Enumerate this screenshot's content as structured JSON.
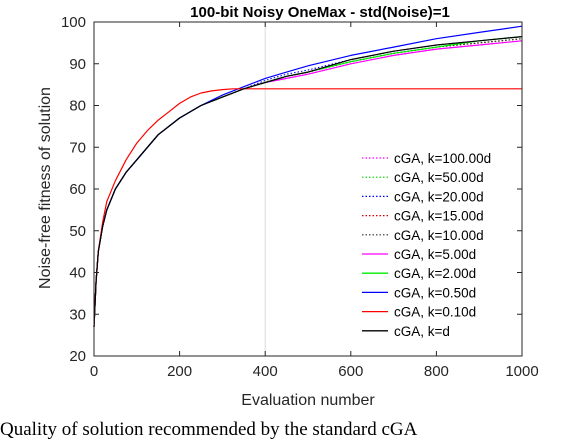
{
  "chart_data": {
    "type": "line",
    "title": "100-bit Noisy OneMax - std(Noise)=1",
    "xlabel": "Evaluation number",
    "ylabel": "Noise-free fitness of solution",
    "xlim": [
      0,
      1000
    ],
    "ylim": [
      20,
      100
    ],
    "xticks": [
      0,
      200,
      400,
      600,
      800,
      1000
    ],
    "yticks": [
      20,
      30,
      40,
      50,
      60,
      70,
      80,
      90,
      100
    ],
    "grid": "vertical at x=400",
    "legend_position": "right-center",
    "series": [
      {
        "name": "cGA, k=100.00d",
        "color": "#ff00ff",
        "style": "dotted",
        "x": [
          0,
          5,
          10,
          20,
          30,
          50,
          75,
          100,
          150,
          200,
          250,
          300,
          350,
          400,
          450,
          500,
          600,
          700,
          800,
          900,
          1000
        ],
        "y": [
          27,
          38,
          45,
          51,
          55,
          60,
          64,
          67,
          73,
          77,
          80,
          82,
          84,
          85.5,
          86.5,
          87.5,
          90,
          92,
          93.5,
          94.5,
          95.5
        ]
      },
      {
        "name": "cGA, k=50.00d",
        "color": "#00cc00",
        "style": "dotted",
        "x": [
          0,
          5,
          10,
          20,
          30,
          50,
          75,
          100,
          150,
          200,
          250,
          300,
          350,
          400,
          450,
          500,
          600,
          700,
          800,
          900,
          1000
        ],
        "y": [
          27,
          38,
          45,
          51,
          55,
          60,
          64,
          67,
          73,
          77,
          80,
          82,
          84,
          85.5,
          87,
          88,
          90.5,
          92.5,
          94,
          95,
          96
        ]
      },
      {
        "name": "cGA, k=20.00d",
        "color": "#0000ff",
        "style": "dotted",
        "x": [
          0,
          5,
          10,
          20,
          30,
          50,
          75,
          100,
          150,
          200,
          250,
          300,
          350,
          400,
          450,
          500,
          600,
          700,
          800,
          900,
          1000
        ],
        "y": [
          27,
          38,
          45,
          51,
          55,
          60,
          64,
          67,
          73,
          77,
          80,
          82,
          84,
          86,
          87.5,
          88.5,
          91,
          93,
          94.5,
          95.5,
          96.5
        ]
      },
      {
        "name": "cGA, k=15.00d",
        "color": "#cc0000",
        "style": "dotted",
        "x": [
          0,
          5,
          10,
          20,
          30,
          50,
          75,
          100,
          150,
          200,
          250,
          300,
          350,
          400,
          450,
          500,
          600,
          700,
          800,
          900,
          1000
        ],
        "y": [
          27,
          38,
          45,
          51,
          55,
          60,
          64,
          67,
          73,
          77,
          80,
          82,
          84,
          85.5,
          87,
          88,
          90.5,
          92.5,
          94,
          95,
          96
        ]
      },
      {
        "name": "cGA, k=10.00d",
        "color": "#333333",
        "style": "dotted",
        "x": [
          0,
          5,
          10,
          20,
          30,
          50,
          75,
          100,
          150,
          200,
          250,
          300,
          350,
          400,
          450,
          500,
          600,
          700,
          800,
          900,
          1000
        ],
        "y": [
          27,
          38,
          45,
          51,
          55,
          60,
          64,
          67,
          73,
          77,
          80,
          82,
          84,
          85.5,
          87,
          88,
          90.5,
          92.5,
          94,
          95,
          96
        ]
      },
      {
        "name": "cGA, k=5.00d",
        "color": "#ff00ff",
        "style": "solid",
        "x": [
          0,
          5,
          10,
          20,
          30,
          50,
          75,
          100,
          150,
          200,
          250,
          300,
          350,
          400,
          450,
          500,
          600,
          700,
          800,
          900,
          1000
        ],
        "y": [
          27,
          38,
          45,
          51,
          55,
          60,
          64,
          67,
          73,
          77,
          80,
          82,
          84,
          85.5,
          86.5,
          87.5,
          90,
          92,
          93.5,
          94.5,
          95.5
        ]
      },
      {
        "name": "cGA, k=2.00d",
        "color": "#00ee00",
        "style": "solid",
        "x": [
          0,
          5,
          10,
          20,
          30,
          50,
          75,
          100,
          150,
          200,
          250,
          300,
          350,
          400,
          450,
          500,
          600,
          700,
          800,
          900,
          1000
        ],
        "y": [
          27,
          38,
          45,
          51,
          55,
          60,
          64,
          67,
          73,
          77,
          80,
          82,
          84,
          85.5,
          87,
          88,
          90.5,
          92.5,
          94,
          95.5,
          96.5
        ]
      },
      {
        "name": "cGA, k=0.50d",
        "color": "#0000ff",
        "style": "solid",
        "x": [
          0,
          5,
          10,
          20,
          30,
          50,
          75,
          100,
          150,
          200,
          250,
          300,
          350,
          400,
          450,
          500,
          600,
          700,
          800,
          900,
          1000
        ],
        "y": [
          27,
          38,
          45,
          51,
          55,
          60,
          64,
          67,
          73,
          77,
          80,
          82.5,
          84.5,
          86.5,
          88,
          89.5,
          92,
          94,
          96,
          97.5,
          99
        ]
      },
      {
        "name": "cGA, k=0.10d",
        "color": "#ff0000",
        "style": "solid",
        "x": [
          0,
          5,
          10,
          20,
          30,
          50,
          75,
          100,
          125,
          150,
          175,
          200,
          225,
          250,
          275,
          300,
          325,
          350,
          400,
          500,
          700,
          1000
        ],
        "y": [
          27,
          38,
          45,
          52,
          57,
          62,
          67,
          71,
          74,
          76.5,
          78.5,
          80.5,
          82,
          83,
          83.5,
          83.8,
          84,
          84,
          84,
          84,
          84,
          84
        ]
      },
      {
        "name": "cGA, k=d",
        "color": "#000000",
        "style": "solid",
        "x": [
          0,
          5,
          10,
          20,
          30,
          50,
          75,
          100,
          150,
          200,
          250,
          300,
          350,
          400,
          450,
          500,
          600,
          700,
          800,
          900,
          1000
        ],
        "y": [
          27,
          38,
          45,
          51,
          55,
          60,
          64,
          67,
          73,
          77,
          80,
          82,
          84,
          85.5,
          87,
          88,
          91,
          93,
          94.5,
          95.5,
          96.5
        ]
      }
    ]
  },
  "caption": "Quality of solution recommended by the standard cGA"
}
